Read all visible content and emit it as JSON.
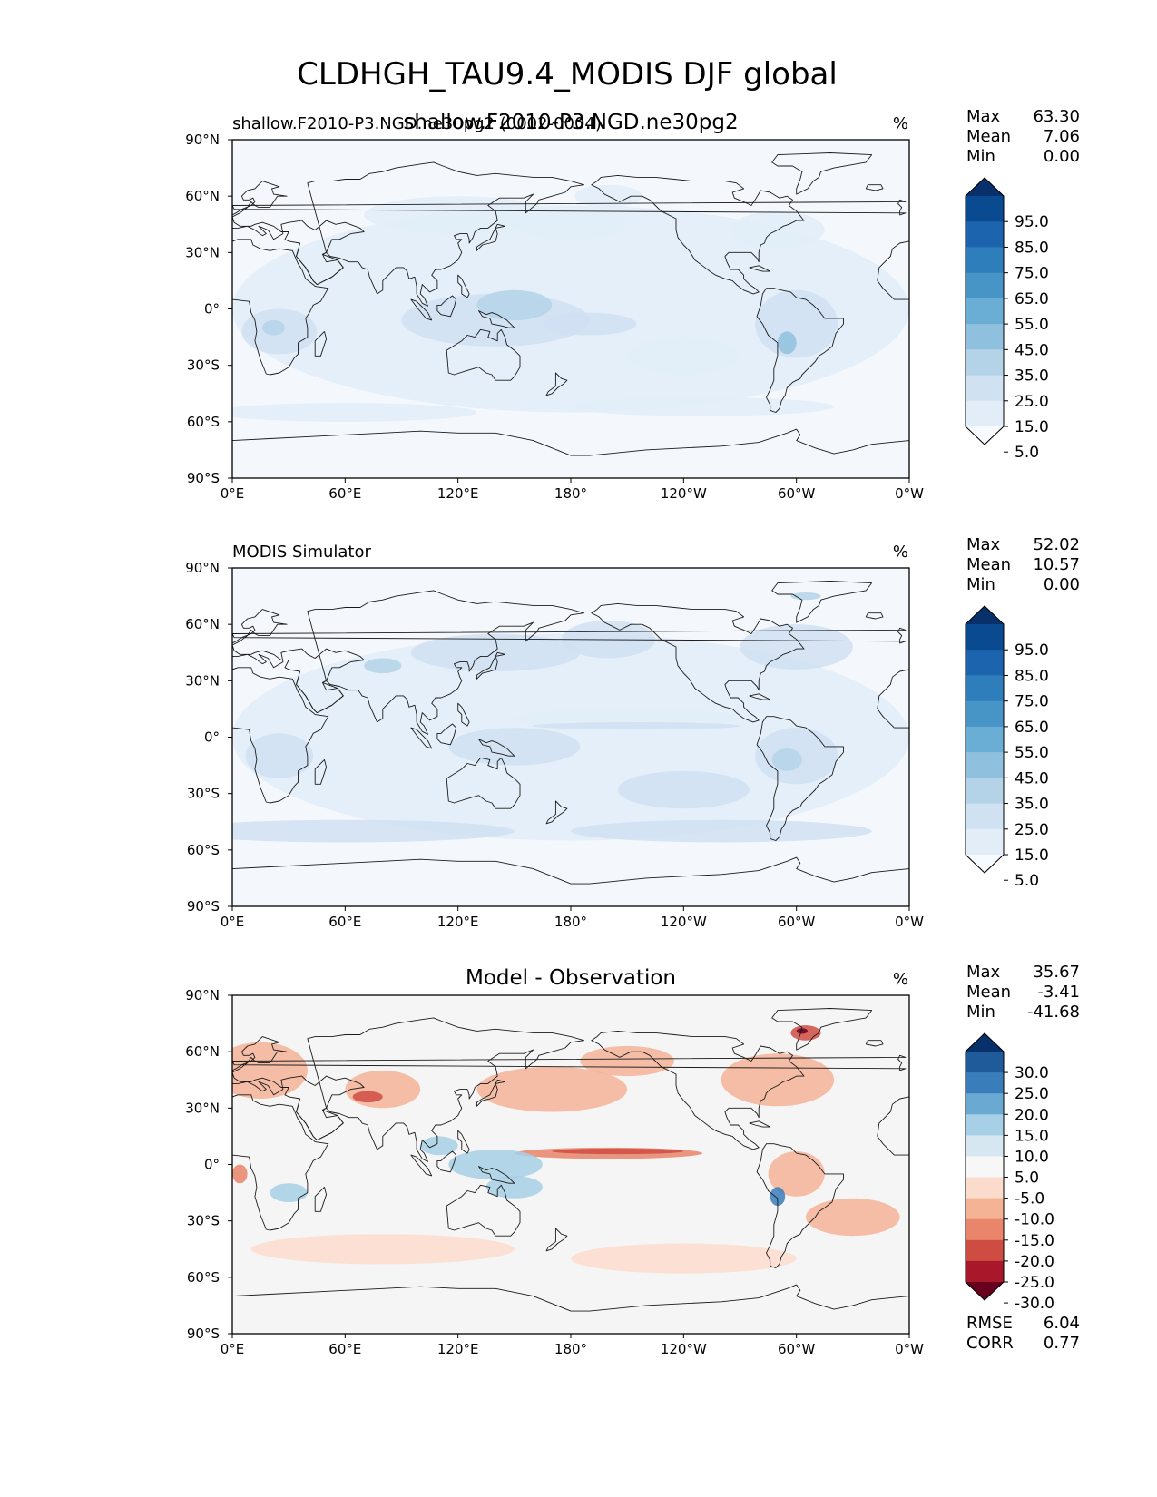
{
  "title": "CLDHGH_TAU9.4_MODIS DJF global",
  "x_ticks": [
    "0°E",
    "60°E",
    "120°E",
    "180°",
    "120°W",
    "60°W",
    "0°W"
  ],
  "y_ticks": [
    "90°N",
    "60°N",
    "30°N",
    "0°",
    "30°S",
    "60°S",
    "90°S"
  ],
  "panels": [
    {
      "left_label": "shallow.F2010-P3.NGD.ne30pg2 (0002-0004)",
      "center_label": "shallow.F2010-P3.NGD.ne30pg2",
      "units": "%",
      "stats": [
        {
          "label": "Max",
          "value": "63.30"
        },
        {
          "label": "Mean",
          "value": "7.06"
        },
        {
          "label": "Min",
          "value": "0.00"
        }
      ],
      "colorbar_labels": [
        "95.0",
        "85.0",
        "75.0",
        "65.0",
        "55.0",
        "45.0",
        "35.0",
        "25.0",
        "15.0",
        "5.0"
      ],
      "colorbar_colors": [
        "#08306b",
        "#0a4a90",
        "#1c64ad",
        "#2f7ebc",
        "#4794c7",
        "#6aaed6",
        "#8fc1de",
        "#b4d3e9",
        "#d0e1f2",
        "#e2edf8",
        "#f7fbff"
      ]
    },
    {
      "left_label": "MODIS Simulator",
      "center_label": "",
      "units": "%",
      "stats": [
        {
          "label": "Max",
          "value": "52.02"
        },
        {
          "label": "Mean",
          "value": "10.57"
        },
        {
          "label": "Min",
          "value": "0.00"
        }
      ],
      "colorbar_labels": [
        "95.0",
        "85.0",
        "75.0",
        "65.0",
        "55.0",
        "45.0",
        "35.0",
        "25.0",
        "15.0",
        "5.0"
      ],
      "colorbar_colors": [
        "#08306b",
        "#0a4a90",
        "#1c64ad",
        "#2f7ebc",
        "#4794c7",
        "#6aaed6",
        "#8fc1de",
        "#b4d3e9",
        "#d0e1f2",
        "#e2edf8",
        "#f7fbff"
      ]
    },
    {
      "left_label": "",
      "center_label": "Model - Observation",
      "units": "%",
      "stats": [
        {
          "label": "Max",
          "value": "35.67"
        },
        {
          "label": "Mean",
          "value": "-3.41"
        },
        {
          "label": "Min",
          "value": "-41.68"
        }
      ],
      "colorbar_labels": [
        "30.0",
        "25.0",
        "20.0",
        "15.0",
        "10.0",
        "5.0",
        "-5.0",
        "-10.0",
        "-15.0",
        "-20.0",
        "-25.0",
        "-30.0"
      ],
      "colorbar_colors": [
        "#08306b",
        "#1f5a9b",
        "#3a7dbb",
        "#6aa9d2",
        "#a7cfe5",
        "#d6e7f1",
        "#f7f7f7",
        "#fbdccc",
        "#f5b396",
        "#e8856a",
        "#cf4c43",
        "#a9172b",
        "#67001f"
      ],
      "bottom_stats": [
        {
          "label": "RMSE",
          "value": "6.04"
        },
        {
          "label": "CORR",
          "value": "0.77"
        }
      ]
    }
  ],
  "map_colors": {
    "ocean_base_top": "#f4f8fd",
    "ocean_base_diff": "#f5f5f5",
    "coast": "#1a1a1a"
  }
}
